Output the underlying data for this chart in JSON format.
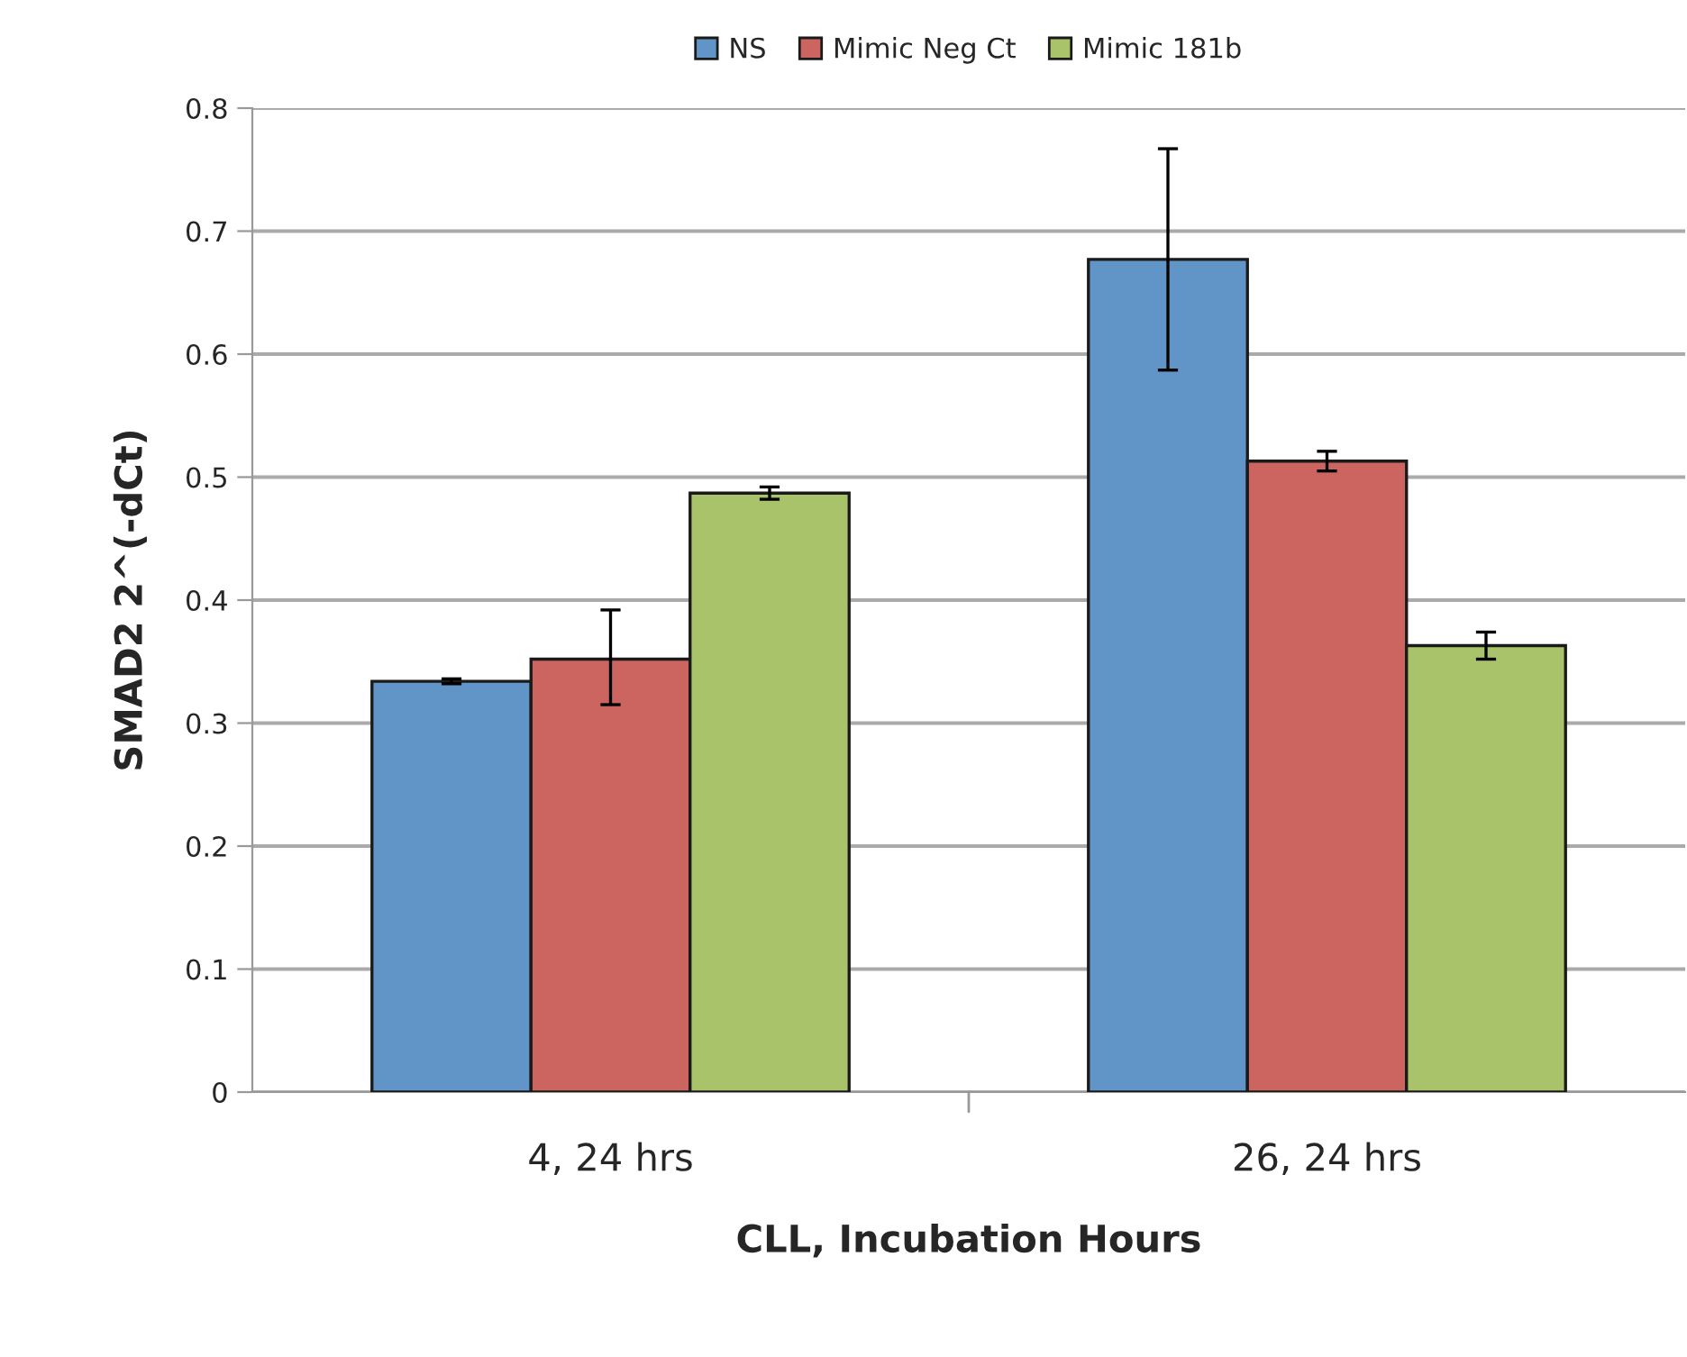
{
  "chart_data": {
    "type": "bar",
    "xlabel": "CLL, Incubation Hours",
    "ylabel": "SMAD2 2^(-dCt)",
    "categories": [
      "4, 24 hrs",
      "26, 24 hrs"
    ],
    "series": [
      {
        "name": "NS",
        "color": "#6195c8",
        "values": [
          0.334,
          0.677
        ],
        "errors": [
          0.002,
          0.09
        ]
      },
      {
        "name": "Mimic Neg Ct",
        "color": "#cc6460",
        "values": [
          0.352,
          0.513
        ],
        "errors": [
          [
            0.315,
            0.392
          ],
          0.008
        ]
      },
      {
        "name": "Mimic 181b",
        "color": "#a9c36a",
        "values": [
          0.487,
          0.363
        ],
        "errors": [
          0.005,
          0.011
        ]
      }
    ],
    "ylim": [
      0,
      0.8
    ],
    "yticks": [
      0,
      0.1,
      0.2,
      0.3,
      0.4,
      0.5,
      0.6,
      0.7,
      0.8
    ],
    "grid": "y",
    "legend": "top"
  }
}
